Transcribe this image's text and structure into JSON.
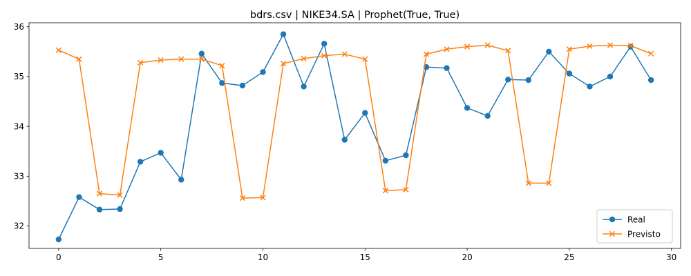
{
  "chart_data": {
    "type": "line",
    "title": "bdrs.csv | NIKE34.SA | Prophet(True, True)",
    "xlabel": "",
    "ylabel": "",
    "xlim": [
      -1.45,
      30.45
    ],
    "ylim": [
      31.55,
      36.08
    ],
    "xticks": [
      0,
      5,
      10,
      15,
      20,
      25,
      30
    ],
    "yticks": [
      32,
      33,
      34,
      35,
      36
    ],
    "grid": false,
    "legend_position": "lower right",
    "x": [
      0,
      1,
      2,
      3,
      4,
      5,
      6,
      7,
      8,
      9,
      10,
      11,
      12,
      13,
      14,
      15,
      16,
      17,
      18,
      19,
      20,
      21,
      22,
      23,
      24,
      25,
      26,
      27,
      28,
      29
    ],
    "series": [
      {
        "name": "Real",
        "color": "#1f77b4",
        "marker": "circle",
        "values": [
          31.73,
          32.58,
          32.33,
          32.34,
          33.29,
          33.47,
          32.93,
          35.46,
          34.87,
          34.82,
          35.09,
          35.85,
          34.8,
          35.66,
          33.73,
          34.27,
          33.31,
          33.42,
          35.19,
          35.17,
          34.37,
          34.21,
          34.94,
          34.93,
          35.5,
          35.06,
          34.8,
          35.0,
          35.6,
          34.93
        ]
      },
      {
        "name": "Previsto",
        "color": "#ff7f0e",
        "marker": "x",
        "values": [
          35.53,
          35.35,
          32.65,
          32.62,
          35.28,
          35.33,
          35.35,
          35.35,
          35.22,
          32.56,
          32.57,
          35.26,
          35.36,
          35.42,
          35.45,
          35.35,
          32.71,
          32.73,
          35.45,
          35.55,
          35.6,
          35.63,
          35.52,
          32.86,
          32.86,
          35.55,
          35.61,
          35.63,
          35.62,
          35.46
        ]
      }
    ]
  }
}
